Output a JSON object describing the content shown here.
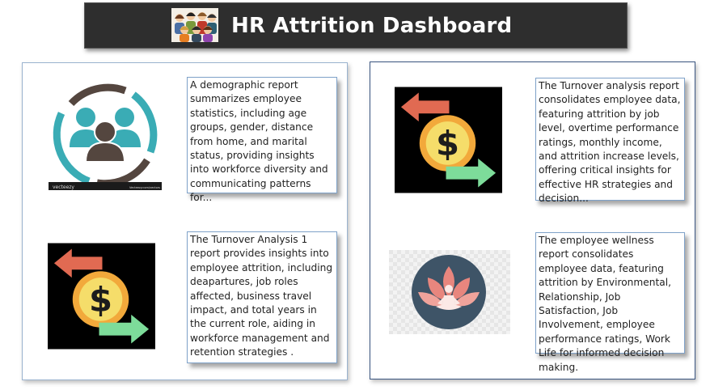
{
  "header": {
    "title": "HR Attrition Dashboard",
    "icon": "people-group-icon"
  },
  "colors": {
    "header_bg": "#2e2e2e",
    "teal": "#3aacb5",
    "dark_brown": "#54463f",
    "money_yellow": "#f5c545",
    "arrow_red": "#e16a52",
    "arrow_green": "#7ddc9a",
    "wellness_navy": "#3e5467",
    "lotus_pink": "#e8867e"
  },
  "cards": [
    {
      "id": "demographic",
      "icon": "demographic-people-icon",
      "watermark_left": "vecteezy",
      "watermark_right": "Vecteezy.com/vectors",
      "text": "A demographic report summarizes employee statistics, including age groups, gender, distance from home, and marital status, providing insights into workforce diversity and communicating patterns for..."
    },
    {
      "id": "turnover1",
      "icon": "turnover-dollar-icon",
      "text": "The Turnover Analysis 1 report provides insights into employee attrition, including deapartures, job roles affected, business travel impact, and total years in the current role, aiding in workforce management and retention strategies ."
    },
    {
      "id": "turnover",
      "icon": "turnover-dollar-icon",
      "text": "The Turnover analysis report consolidates employee data, featuring attrition by job level, overtime performance ratings, monthly income, and attrition increase levels, offering critical insights for effective HR strategies and decision..."
    },
    {
      "id": "wellness",
      "icon": "wellness-lotus-icon",
      "text": "The employee wellness report consolidates employee data, featuring attrition by Environmental, Relationship, Job Satisfaction, Job Involvement, employee performance ratings, Work Life for informed decision making."
    }
  ]
}
